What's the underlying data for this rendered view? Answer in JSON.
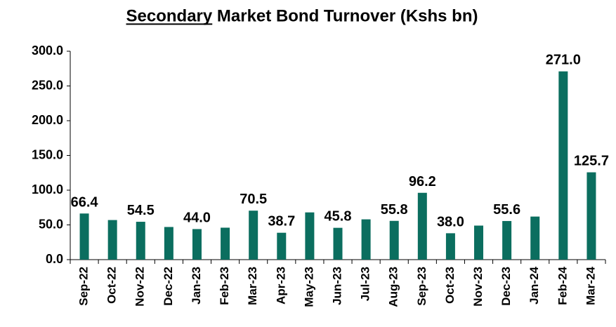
{
  "chart_data": {
    "type": "bar",
    "title": "Secondary Market Bond Turnover (Kshs bn)",
    "categories": [
      "Sep-22",
      "Oct-22",
      "Nov-22",
      "Dec-22",
      "Jan-23",
      "Feb-23",
      "Mar-23",
      "Apr-23",
      "May-23",
      "Jun-23",
      "Jul-23",
      "Aug-23",
      "Sep-23",
      "Oct-23",
      "Nov-23",
      "Dec-23",
      "Jan-24",
      "Feb-24",
      "Mar-24"
    ],
    "values": [
      66.4,
      57,
      54.5,
      47,
      44.0,
      46,
      70.5,
      38.7,
      68,
      45.8,
      58,
      55.8,
      96.2,
      38.0,
      49,
      55.6,
      62,
      271.0,
      125.7
    ],
    "value_labels": [
      "66.4",
      null,
      "54.5",
      null,
      "44.0",
      null,
      "70.5",
      "38.7",
      null,
      "45.8",
      null,
      "55.8",
      "96.2",
      "38.0",
      null,
      "55.6",
      null,
      "271.0",
      "125.7"
    ],
    "color": "#0b6e5f",
    "ylim": [
      0,
      300
    ],
    "yticks": [
      {
        "value": 0,
        "label": "0.0"
      },
      {
        "value": 50,
        "label": "50.0"
      },
      {
        "value": 100,
        "label": "100.0"
      },
      {
        "value": 150,
        "label": "150.0"
      },
      {
        "value": 200,
        "label": "200.0"
      },
      {
        "value": 250,
        "label": "250.0"
      },
      {
        "value": 300,
        "label": "300.0"
      }
    ],
    "grid": false
  }
}
